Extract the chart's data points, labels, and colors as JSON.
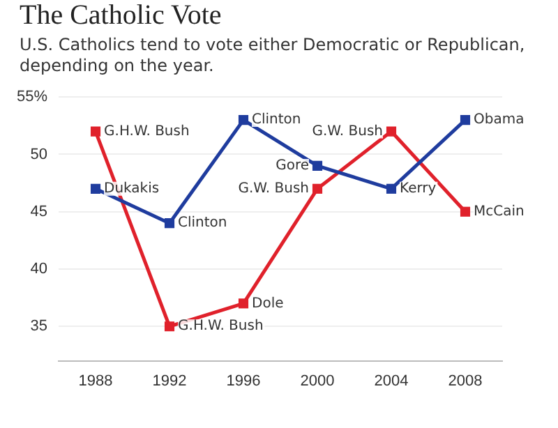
{
  "chart_data": {
    "type": "line",
    "title": "The Catholic Vote",
    "subtitle": "U.S. Catholics tend to vote either Democratic or Republican, depending on the year.",
    "categories": [
      "1988",
      "1992",
      "1996",
      "2000",
      "2004",
      "2008"
    ],
    "series": [
      {
        "color": "#1f3c9e",
        "values": [
          47,
          44,
          53,
          49,
          47,
          53
        ]
      },
      {
        "color": "#e0212b",
        "values": [
          52,
          35,
          37,
          47,
          52,
          45
        ]
      }
    ],
    "ylim": [
      32,
      55
    ],
    "yticks": [
      35,
      40,
      45,
      50,
      {
        "value": 55,
        "label": "55%"
      }
    ],
    "grid": "y",
    "legend": false,
    "marker": "square",
    "line_style": "solid",
    "annotations": [
      {
        "text": "Dukakis",
        "x": "1988",
        "y": 47
      },
      {
        "text": "Clinton",
        "x": "1992",
        "y": 44
      },
      {
        "text": "Clinton",
        "x": "1996",
        "y": 53
      },
      {
        "text": "Gore",
        "x": "2000",
        "y": 49
      },
      {
        "text": "Kerry",
        "x": "2004",
        "y": 47
      },
      {
        "text": "Obama",
        "x": "2008",
        "y": 53
      },
      {
        "text": "G.H.W. Bush",
        "x": "1988",
        "y": 52
      },
      {
        "text": "G.H.W. Bush",
        "x": "1992",
        "y": 35
      },
      {
        "text": "Dole",
        "x": "1996",
        "y": 37
      },
      {
        "text": "G.W. Bush",
        "x": "2000",
        "y": 47
      },
      {
        "text": "G.W. Bush",
        "x": "2004",
        "y": 52
      },
      {
        "text": "McCain",
        "x": "2008",
        "y": 45
      }
    ]
  }
}
